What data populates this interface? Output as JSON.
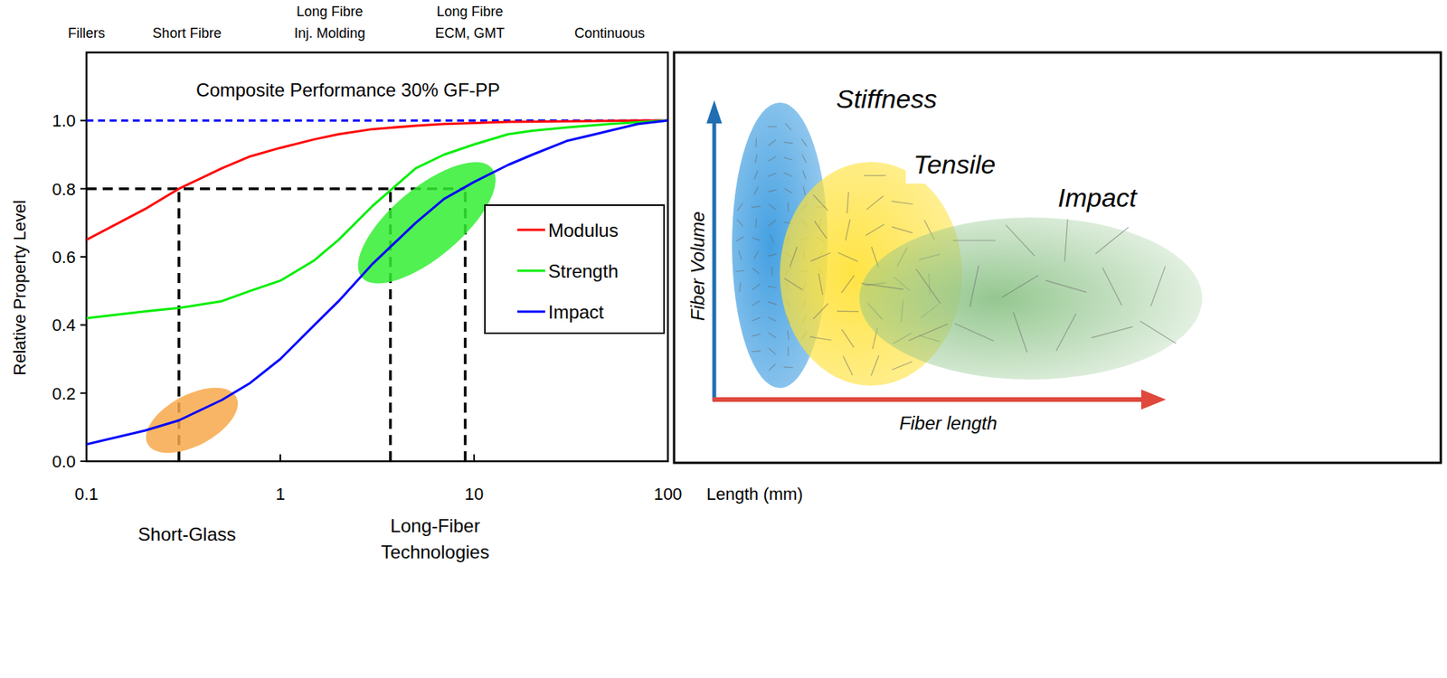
{
  "chart_data": {
    "type": "line",
    "title": "Composite Performance 30% GF-PP",
    "y_label": "Relative Property Level",
    "x_label": "Length (mm)",
    "log": "x",
    "xlim": [
      0.1,
      100
    ],
    "xticks": [
      0.1,
      1,
      10,
      100
    ],
    "ylim": [
      0,
      1.2
    ],
    "yticks": [
      {
        "value": 0,
        "label": "0.0"
      },
      0.2,
      0.4,
      0.6,
      0.8,
      {
        "value": 1,
        "label": "1.0"
      }
    ],
    "legend": "right",
    "x": [
      0.1,
      0.2,
      0.3,
      0.5,
      0.7,
      1,
      1.5,
      2,
      3,
      5,
      7,
      10,
      15,
      20,
      30,
      50,
      70,
      100
    ],
    "series": [
      {
        "name": "Modulus",
        "color": "#ff0000",
        "values": [
          0.65,
          0.74,
          0.8,
          0.86,
          0.895,
          0.92,
          0.945,
          0.96,
          0.975,
          0.985,
          0.99,
          0.993,
          0.996,
          0.997,
          0.998,
          0.999,
          1.0,
          1.0
        ]
      },
      {
        "name": "Strength",
        "color": "#00ee00",
        "values": [
          0.42,
          0.44,
          0.45,
          0.47,
          0.5,
          0.53,
          0.59,
          0.65,
          0.75,
          0.86,
          0.9,
          0.93,
          0.96,
          0.97,
          0.98,
          0.99,
          0.995,
          1.0
        ]
      },
      {
        "name": "Impact",
        "color": "#0000ff",
        "values": [
          0.05,
          0.09,
          0.12,
          0.18,
          0.23,
          0.3,
          0.4,
          0.47,
          0.58,
          0.7,
          0.77,
          0.82,
          0.87,
          0.9,
          0.94,
          0.97,
          0.99,
          1.0
        ]
      }
    ],
    "reference_y": 1.0,
    "thresholds": {
      "y": 0.8,
      "x": [
        0.3,
        3.7,
        9
      ]
    },
    "highlights": [
      {
        "x": 0.35,
        "y": 0.12,
        "color": "#f7a84a"
      },
      {
        "x": 5.7,
        "y": 0.7,
        "color": "#33ee33"
      }
    ],
    "top_labels": [
      {
        "x": 0.1,
        "lines": [
          "Fillers"
        ]
      },
      {
        "x": 0.33,
        "lines": [
          "Short Fibre"
        ]
      },
      {
        "x": 1.8,
        "lines": [
          "Long Fibre",
          "Inj. Molding"
        ]
      },
      {
        "x": 9.5,
        "lines": [
          "Long Fibre",
          "ECM, GMT"
        ]
      },
      {
        "x": 50,
        "lines": [
          "Continuous"
        ]
      }
    ],
    "bottom_labels": [
      {
        "x": 0.33,
        "lines": [
          "Short-Glass"
        ]
      },
      {
        "x": 6.3,
        "lines": [
          "Long-Fiber",
          "Technologies"
        ]
      }
    ]
  },
  "diagram": {
    "x_axis": "Fiber length",
    "y_axis": "Fiber Volume",
    "regions": [
      {
        "label": "Stiffness",
        "color": "#3a9be0"
      },
      {
        "label": "Tensile",
        "color": "#ffe23a"
      },
      {
        "label": "Impact",
        "color": "#8fc48a"
      }
    ]
  }
}
